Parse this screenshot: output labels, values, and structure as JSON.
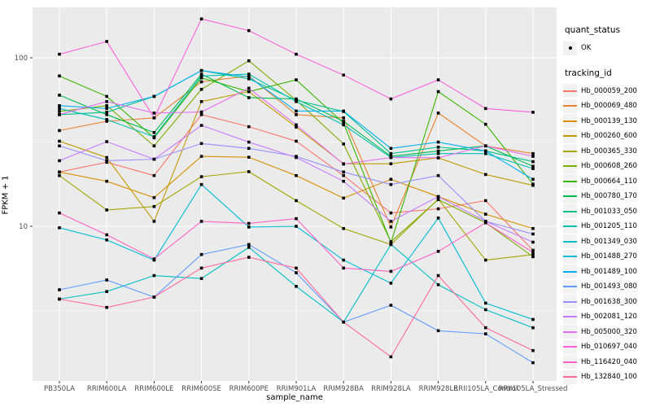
{
  "figure": {
    "panel_bg": "#EBEBEB",
    "grid_color": "#FFFFFF",
    "tick_color": "#333333",
    "tick_label_color": "#4D4D4D",
    "point_color": "#000000"
  },
  "legend": {
    "quant_title": "quant_status",
    "quant_ok_label": "OK",
    "tracking_title": "tracking_id"
  },
  "chart_data": {
    "type": "line",
    "title": "",
    "xlabel": "sample_name",
    "ylabel": "FPKM + 1",
    "y_scale": "log10",
    "y_ticks": [
      10,
      100
    ],
    "ylim": [
      1.2,
      199
    ],
    "grid": true,
    "legend_position": "right",
    "point_shape": "small black square",
    "categories": [
      "PB350LA",
      "RRIM600LA",
      "RRIM600LE",
      "RRIM600SE",
      "RRIM600PE",
      "RRIM901LA",
      "RRIM928BA",
      "RRIM928LA",
      "RRIM928LE",
      "RRII105LA_Control",
      "RRII105LA_Stressed"
    ],
    "series": [
      {
        "name": "Hb_000059_200",
        "color": "#F8766D",
        "values": [
          21,
          24,
          20,
          46,
          39,
          32,
          20,
          12,
          12.7,
          14.2,
          7.2
        ]
      },
      {
        "name": "Hb_000069_480",
        "color": "#EA8331",
        "values": [
          37,
          42,
          44,
          72,
          78,
          46,
          44,
          9.9,
          47,
          30,
          27
        ]
      },
      {
        "name": "Hb_000139_130",
        "color": "#D89000",
        "values": [
          21,
          18.5,
          14.8,
          26,
          25.7,
          20,
          14.7,
          19,
          15,
          11.8,
          9.7
        ]
      },
      {
        "name": "Hb_000260_600",
        "color": "#C09B00",
        "values": [
          32,
          25.6,
          10.7,
          55,
          63,
          38.8,
          23.5,
          23.5,
          25.5,
          20.3,
          17.5
        ]
      },
      {
        "name": "Hb_000365_330",
        "color": "#A3A500",
        "values": [
          20,
          12.5,
          13.1,
          19.7,
          21.1,
          14.2,
          9.7,
          7.8,
          14.5,
          6.3,
          6.8
        ]
      },
      {
        "name": "Hb_000608_260",
        "color": "#7CAE00",
        "values": [
          48,
          52,
          30,
          65,
          96,
          56,
          30.8,
          8.1,
          14.4,
          10.5,
          6.6
        ]
      },
      {
        "name": "Hb_000664_110",
        "color": "#39B600",
        "values": [
          78,
          59,
          33.5,
          76,
          63,
          74,
          41,
          8,
          63,
          40.3,
          17.8
        ]
      },
      {
        "name": "Hb_000780_170",
        "color": "#00BB4E",
        "values": [
          60,
          46,
          36,
          80,
          58,
          57,
          42,
          26,
          28,
          30,
          22.7
        ]
      },
      {
        "name": "Hb_001033_050",
        "color": "#00C087",
        "values": [
          46,
          47.5,
          59,
          84,
          75,
          56,
          48,
          27,
          29.5,
          28,
          24.2
        ]
      },
      {
        "name": "Hb_001205_110",
        "color": "#00C0B2",
        "values": [
          50,
          43,
          34,
          78,
          80,
          55,
          40,
          25.6,
          27,
          27,
          22
        ]
      },
      {
        "name": "Hb_001349_030",
        "color": "#00BFC4",
        "values": [
          3.7,
          4.1,
          5.1,
          4.9,
          7.5,
          4.4,
          2.7,
          7.8,
          4.5,
          3.2,
          2.5
        ]
      },
      {
        "name": "Hb_001488_270",
        "color": "#00BCD8",
        "values": [
          9.8,
          8.3,
          6.3,
          17.7,
          9.9,
          10,
          6.3,
          4.6,
          11.2,
          3.5,
          2.8
        ]
      },
      {
        "name": "Hb_001489_100",
        "color": "#00B0F6",
        "values": [
          52,
          50,
          59,
          84,
          77,
          48.3,
          48.3,
          29,
          31.6,
          28,
          19
        ]
      },
      {
        "name": "Hb_001493_080",
        "color": "#619CFF",
        "values": [
          4.2,
          4.8,
          3.8,
          6.8,
          7.8,
          5.3,
          2.7,
          3.4,
          2.4,
          2.3,
          1.55
        ]
      },
      {
        "name": "Hb_001638_300",
        "color": "#9590FF",
        "values": [
          30,
          24.5,
          25,
          31,
          29,
          26,
          21,
          17.7,
          20,
          10.7,
          9
        ]
      },
      {
        "name": "Hb_002081_120",
        "color": "#C77CFF",
        "values": [
          24.5,
          31.8,
          25,
          39.7,
          31.6,
          25.6,
          18.5,
          10.7,
          15,
          10.7,
          8.05
        ]
      },
      {
        "name": "Hb_005000_320",
        "color": "#E76BF3",
        "values": [
          46,
          55,
          47,
          47.7,
          66,
          40,
          23.4,
          25.6,
          25.5,
          30,
          26
        ]
      },
      {
        "name": "Hb_010697_040",
        "color": "#FA62DB",
        "values": [
          105,
          125,
          44,
          170,
          145,
          105,
          79,
          57,
          74,
          50,
          47.5
        ]
      },
      {
        "name": "Hb_116420_040",
        "color": "#FF61C3",
        "values": [
          12,
          8.9,
          6.4,
          10.7,
          10.4,
          11.1,
          5.65,
          5.4,
          7.1,
          10.5,
          7
        ]
      },
      {
        "name": "Hb_132840_100",
        "color": "#FF6A98",
        "values": [
          3.7,
          3.3,
          3.8,
          5.65,
          6.55,
          5.65,
          2.7,
          1.68,
          5.1,
          2.5,
          1.83
        ]
      }
    ]
  }
}
